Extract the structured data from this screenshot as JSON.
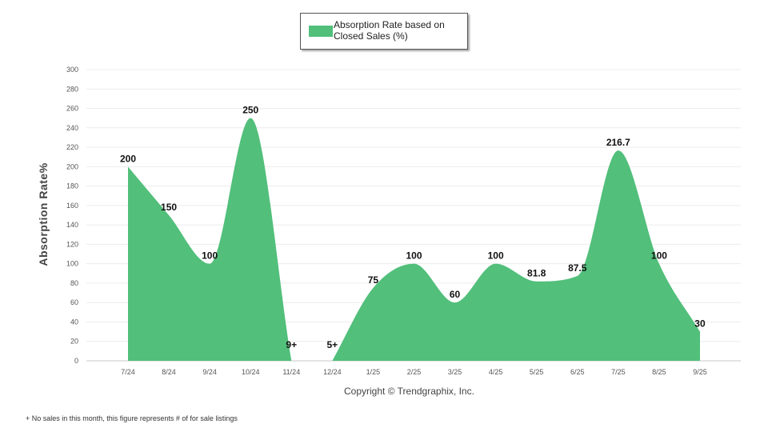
{
  "chart_data": {
    "type": "area",
    "categories": [
      "7/24",
      "8/24",
      "9/24",
      "10/24",
      "11/24",
      "12/24",
      "1/25",
      "2/25",
      "3/25",
      "4/25",
      "5/25",
      "6/25",
      "7/25",
      "8/25",
      "9/25"
    ],
    "series": [
      {
        "name": "Absorption Rate based on Closed Sales (%)",
        "values": [
          200,
          150,
          100,
          250,
          0,
          0,
          75,
          100,
          60,
          100,
          81.8,
          87.5,
          216.7,
          100,
          30
        ],
        "labels": [
          "200",
          "150",
          "100",
          "250",
          "9+",
          "5+",
          "75",
          "100",
          "60",
          "100",
          "81.8",
          "87.5",
          "216.7",
          "100",
          "30"
        ],
        "color": "#52bf7b"
      }
    ],
    "ylabel": "Absorption Rate%",
    "ylim": [
      0,
      300
    ],
    "yticks": [
      0,
      20,
      40,
      60,
      80,
      100,
      120,
      140,
      160,
      180,
      200,
      220,
      240,
      260,
      280,
      300
    ],
    "grid": true,
    "legend_position": "top-center"
  },
  "legend": {
    "label": "Absorption Rate based on Closed Sales (%)"
  },
  "copyright": "Copyright © Trendgraphix, Inc.",
  "footnote": "+ No sales in this month, this figure represents # of for sale listings"
}
